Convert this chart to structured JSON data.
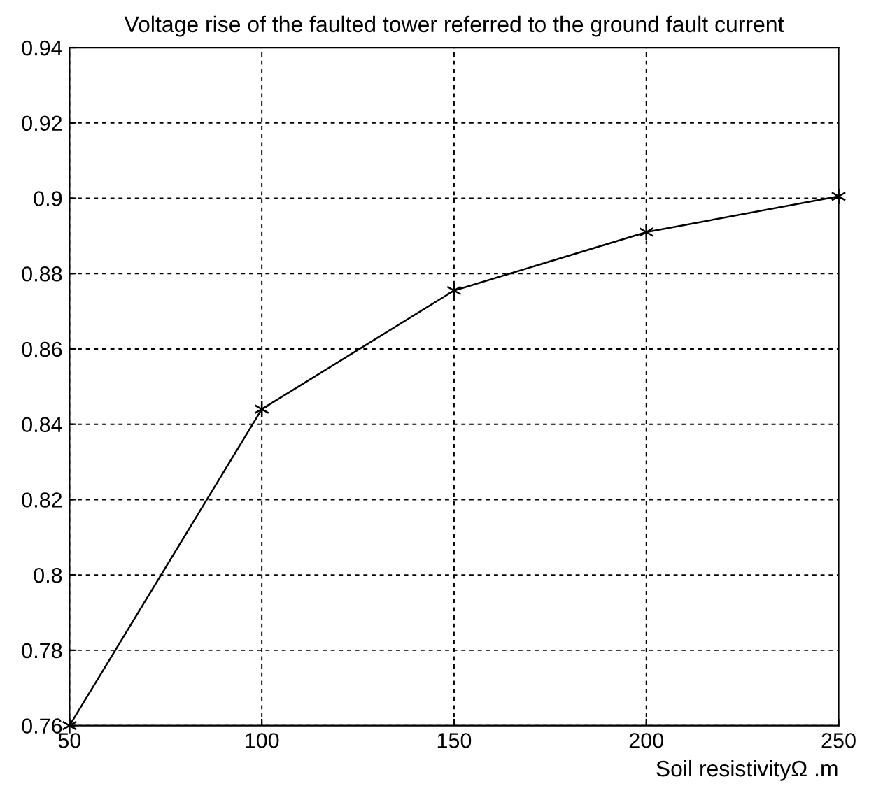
{
  "chart_data": {
    "type": "line",
    "title": "Voltage rise of the faulted tower referred to the ground fault current",
    "xlabel": "Soil resistivityΩ .m",
    "x": [
      50,
      100,
      150,
      200,
      250
    ],
    "series": [
      {
        "color": "#000000",
        "values": [
          0.76,
          0.844,
          0.8755,
          0.891,
          0.9005
        ]
      }
    ],
    "xlim": [
      50,
      250
    ],
    "xticks": [
      50,
      100,
      150,
      200,
      250
    ],
    "ylim": [
      0.76,
      0.94
    ],
    "yticks": [
      {
        "value": 0.76,
        "label": "0.76"
      },
      {
        "value": 0.78,
        "label": "0.78"
      },
      {
        "value": 0.8,
        "label": "0.8"
      },
      {
        "value": 0.82,
        "label": "0.82"
      },
      {
        "value": 0.84,
        "label": "0.84"
      },
      {
        "value": 0.86,
        "label": "0.86"
      },
      {
        "value": 0.88,
        "label": "0.88"
      },
      {
        "value": 0.9,
        "label": "0.9"
      },
      {
        "value": 0.92,
        "label": "0.92"
      },
      {
        "value": 0.94,
        "label": "0.94"
      }
    ],
    "grid": true,
    "marker": "cross",
    "line_style": "solid"
  }
}
